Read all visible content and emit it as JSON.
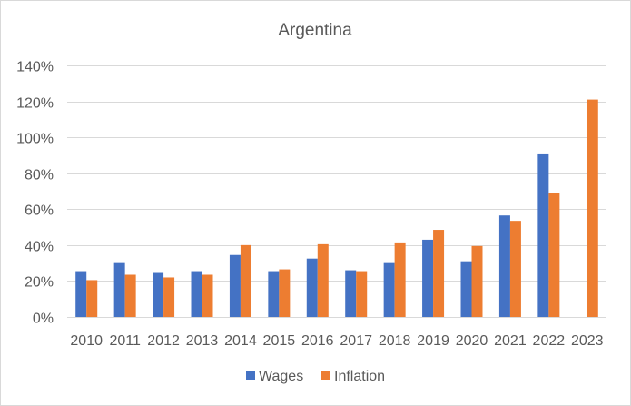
{
  "chart_data": {
    "type": "bar",
    "title": "Argentina",
    "xlabel": "",
    "ylabel": "",
    "categories": [
      "2010",
      "2011",
      "2012",
      "2013",
      "2014",
      "2015",
      "2016",
      "2017",
      "2018",
      "2019",
      "2020",
      "2021",
      "2022",
      "2023"
    ],
    "series": [
      {
        "name": "Wages",
        "color": "#4472C4",
        "values": [
          25.5,
          30,
          24.5,
          25.5,
          34.5,
          25.5,
          32.5,
          26,
          30,
          43,
          31,
          56.5,
          90.5,
          null
        ]
      },
      {
        "name": "Inflation",
        "color": "#ED7D31",
        "values": [
          20.5,
          23.5,
          22,
          23.5,
          40,
          26.5,
          40.5,
          25.5,
          41.5,
          48.5,
          39.5,
          53.5,
          69,
          121
        ]
      }
    ],
    "ylim": [
      0,
      140
    ],
    "yticks": [
      0,
      20,
      40,
      60,
      80,
      100,
      120,
      140
    ],
    "ytick_labels": [
      "0%",
      "20%",
      "40%",
      "60%",
      "80%",
      "100%",
      "120%",
      "140%"
    ],
    "grid": true,
    "legend_position": "bottom"
  }
}
